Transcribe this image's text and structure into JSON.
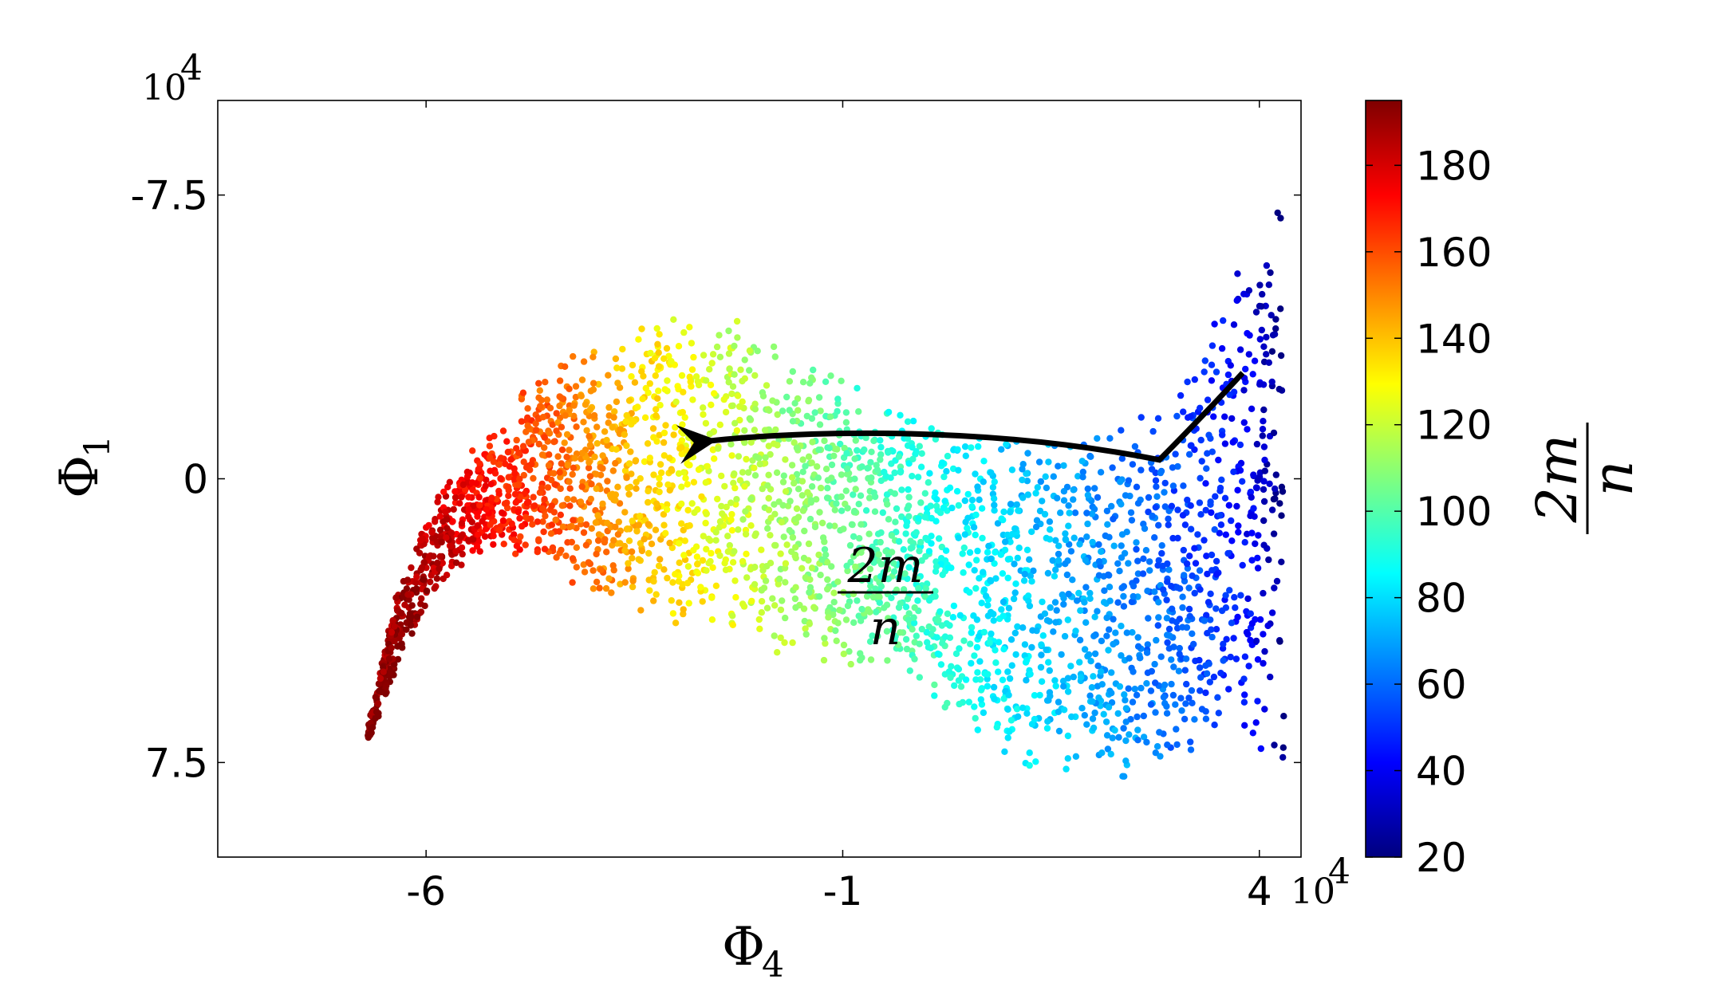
{
  "chart_data": {
    "type": "scatter",
    "title": "",
    "xlabel": "Φ",
    "xlabel_sub": "4",
    "ylabel": "Φ",
    "ylabel_sub": "1",
    "x_multiplier_label": "10",
    "x_multiplier_exp": "4",
    "y_multiplier_label": "10",
    "y_multiplier_exp": "4",
    "xlim": [
      -8.5,
      4.5
    ],
    "ylim": [
      -10,
      10
    ],
    "y_inverted": true,
    "x_ticks": [
      -6,
      -1,
      4
    ],
    "x_tick_labels": [
      "-6",
      "-1",
      "4"
    ],
    "y_ticks": [
      -7.5,
      0,
      7.5
    ],
    "y_tick_labels": [
      "-7.5",
      "0",
      "7.5"
    ],
    "grid": false,
    "colormap": "jet",
    "color_label_numerator": "2m",
    "color_label_denominator": "n",
    "color_range": [
      20,
      195
    ],
    "colorbar_ticks": [
      20,
      40,
      60,
      80,
      100,
      120,
      140,
      160,
      180
    ],
    "colorbar_tick_labels": [
      "20",
      "40",
      "60",
      "80",
      "100",
      "120",
      "140",
      "160",
      "180"
    ],
    "arrow_annotation": {
      "label_numerator": "2m",
      "label_denominator": "n",
      "path": [
        [
          3.8,
          -2.8
        ],
        [
          3.3,
          -1.6
        ],
        [
          2.8,
          -0.5
        ],
        [
          0.5,
          -1.5
        ],
        [
          -1.8,
          -1.2
        ],
        [
          -2.6,
          -1.0
        ]
      ],
      "direction": "increasing 2m/n"
    },
    "series": [
      {
        "description_key": "band",
        "centerline": [
          [
            4.3,
            20,
            -6.8
          ],
          [
            4.1,
            30,
            -5.6
          ],
          [
            3.9,
            40,
            -3.8
          ],
          [
            3.5,
            50,
            -2.3
          ],
          [
            2.8,
            60,
            -1.0
          ],
          [
            2.0,
            70,
            0.2
          ],
          [
            1.0,
            80,
            1.8
          ],
          [
            0.2,
            90,
            2.6
          ],
          [
            -0.6,
            100,
            3.0
          ],
          [
            -1.5,
            110,
            2.4
          ],
          [
            -2.2,
            120,
            1.6
          ],
          [
            -2.9,
            130,
            1.0
          ],
          [
            -3.5,
            140,
            0.7
          ],
          [
            -4.0,
            150,
            0.8
          ],
          [
            -4.6,
            160,
            0.9
          ],
          [
            -5.2,
            170,
            1.0
          ],
          [
            -5.7,
            180,
            1.6
          ],
          [
            -6.2,
            190,
            4.2
          ],
          [
            -6.7,
            195,
            7.5
          ]
        ],
        "upper_edge": [
          [
            4.3,
            -8.0
          ],
          [
            4.0,
            -6.8
          ],
          [
            3.6,
            -5.2
          ],
          [
            3.0,
            -2.6
          ],
          [
            2.0,
            -1.3
          ],
          [
            1.2,
            -1.3
          ],
          [
            0.2,
            -1.5
          ],
          [
            -0.6,
            -2.4
          ],
          [
            -1.4,
            -3.4
          ],
          [
            -2.2,
            -4.2
          ],
          [
            -2.9,
            -4.6
          ],
          [
            -3.5,
            -4.2
          ],
          [
            -4.2,
            -3.5
          ],
          [
            -4.8,
            -2.5
          ],
          [
            -5.3,
            -1.2
          ],
          [
            -5.8,
            0.2
          ],
          [
            -6.3,
            2.5
          ],
          [
            -6.8,
            7.5
          ]
        ],
        "lower_edge": [
          [
            4.2,
            7.8
          ],
          [
            3.8,
            7.3
          ],
          [
            3.2,
            8.0
          ],
          [
            2.4,
            8.4
          ],
          [
            1.6,
            8.2
          ],
          [
            0.8,
            7.8
          ],
          [
            0.0,
            6.0
          ],
          [
            -0.6,
            5.2
          ],
          [
            -1.4,
            5.0
          ],
          [
            -2.2,
            4.6
          ],
          [
            -2.9,
            4.0
          ],
          [
            -3.5,
            3.6
          ],
          [
            -4.2,
            3.0
          ],
          [
            -4.8,
            2.2
          ],
          [
            -5.3,
            2.0
          ],
          [
            -5.8,
            2.8
          ],
          [
            -6.3,
            4.8
          ],
          [
            -6.8,
            7.6
          ]
        ],
        "point_count": 3200
      }
    ]
  }
}
